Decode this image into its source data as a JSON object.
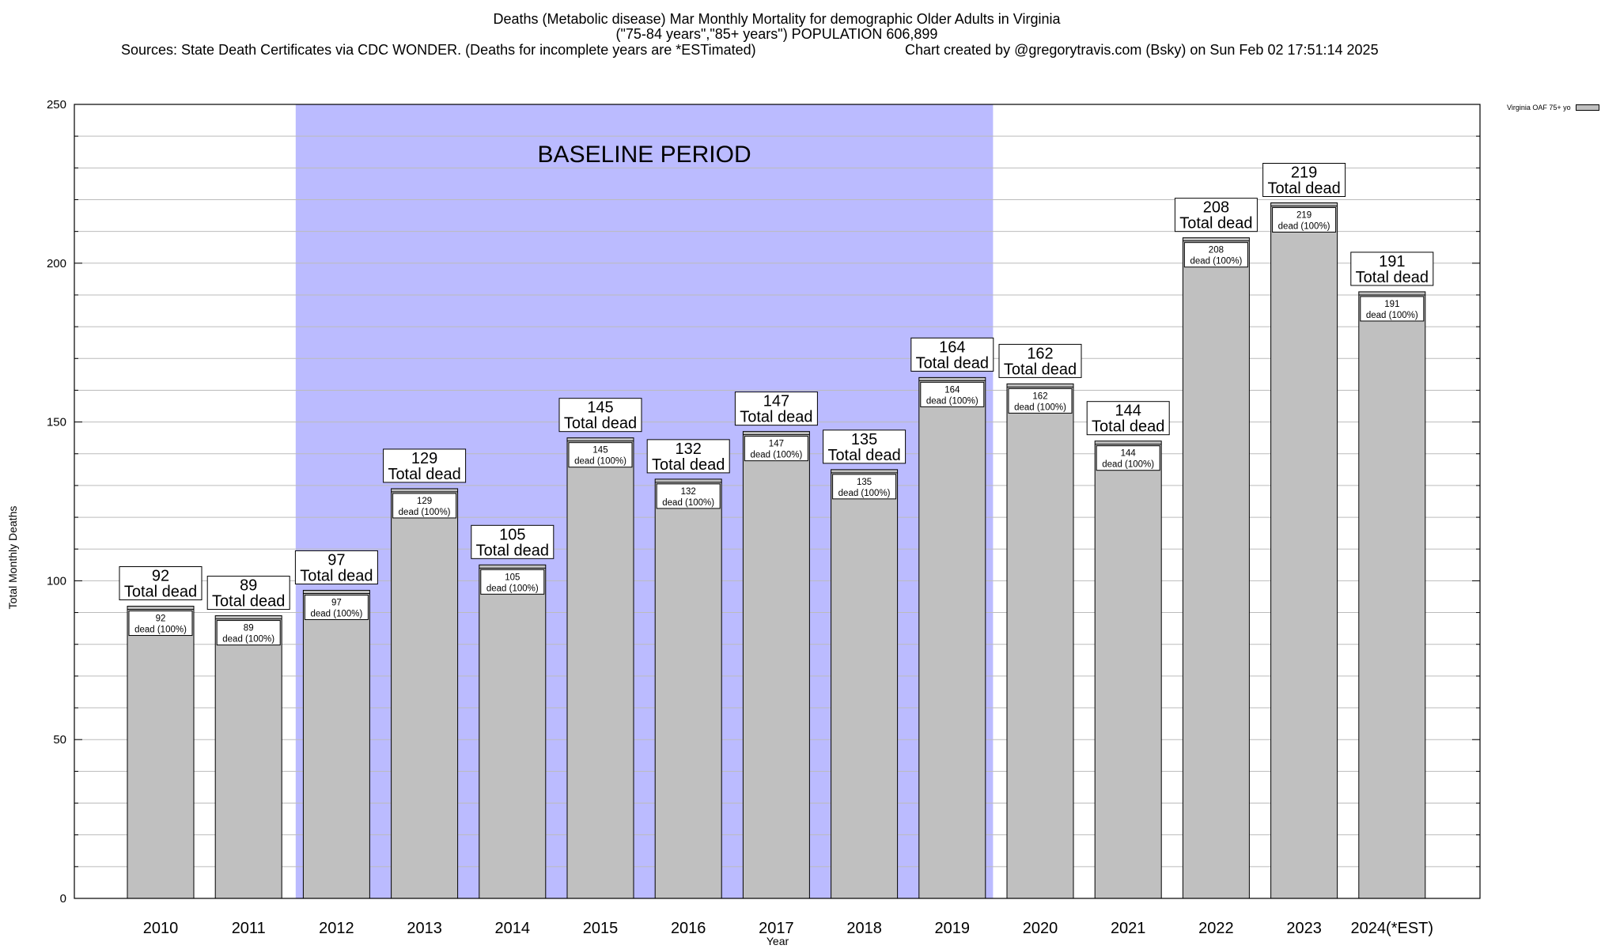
{
  "header": {
    "title_line1": "Deaths (Metabolic disease) Mar Monthly Mortality for demographic Older Adults in Virginia",
    "title_line2": "(\"75-84 years\",\"85+ years\") POPULATION 606,899",
    "sources": "Sources: State Death Certificates via CDC WONDER. (Deaths for incomplete years are *ESTimated)",
    "credit": "Chart created by @gregorytravis.com (Bsky) on Sun Feb 02 17:51:14 2025"
  },
  "chart_data": {
    "type": "bar",
    "xlabel": "Year",
    "ylabel": "Total Monthly Deaths",
    "ylim": [
      0,
      250
    ],
    "yticks": [
      0,
      50,
      100,
      150,
      200,
      250
    ],
    "grid": true,
    "legend_position": "top-right",
    "categories": [
      "2010",
      "2011",
      "2012",
      "2013",
      "2014",
      "2015",
      "2016",
      "2017",
      "2018",
      "2019",
      "2020",
      "2021",
      "2022",
      "2023",
      "2024(*EST)"
    ],
    "series": [
      {
        "name": "Virginia OAF 75+ yo",
        "values": [
          92,
          89,
          97,
          129,
          105,
          145,
          132,
          147,
          135,
          164,
          162,
          144,
          208,
          219,
          191
        ],
        "color": "#c0c0c0"
      }
    ],
    "total_label": "Total dead",
    "inner_label": "dead (100%)",
    "baseline_period": {
      "label": "BASELINE PERIOD",
      "start": "2012",
      "end": "2019",
      "color": "#bbbbff"
    }
  }
}
